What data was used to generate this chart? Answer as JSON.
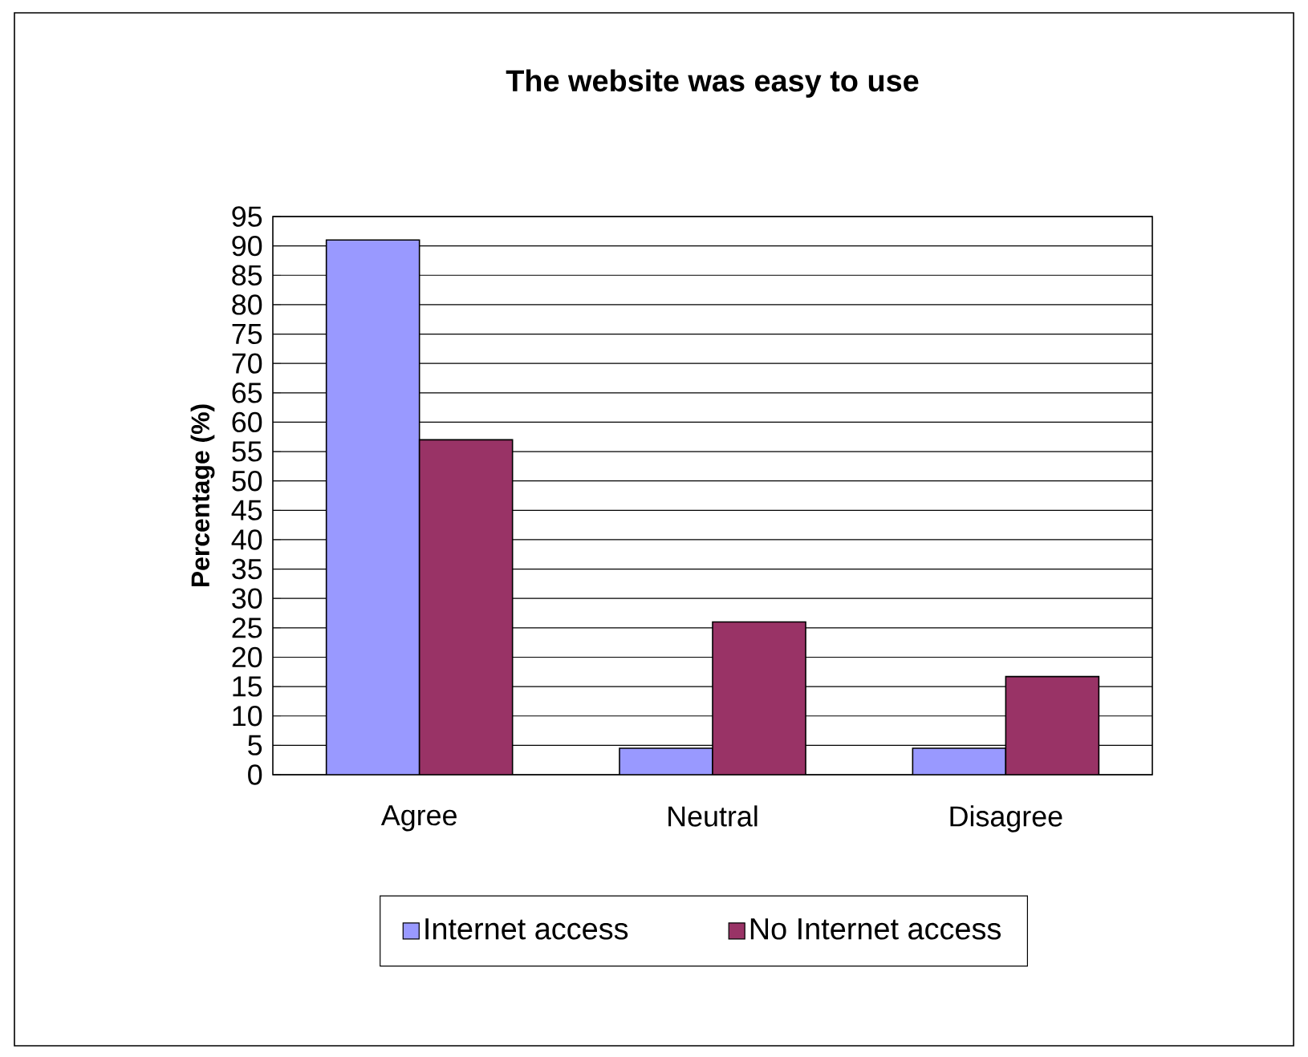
{
  "chart_data": {
    "type": "bar",
    "title": "The website was easy to use",
    "ylabel": "Percentage (%)",
    "categories": [
      "Agree",
      "Neutral",
      "Disagree"
    ],
    "series": [
      {
        "name": "Internet access",
        "color": "#9999ff",
        "values": [
          91,
          4.5,
          4.5
        ]
      },
      {
        "name": "No Internet access",
        "color": "#993366",
        "values": [
          57,
          26,
          16.7
        ]
      }
    ],
    "ylim": [
      0,
      95
    ],
    "yticks": [
      0,
      5,
      10,
      15,
      20,
      25,
      30,
      35,
      40,
      45,
      50,
      55,
      60,
      65,
      70,
      75,
      80,
      85,
      90,
      95
    ],
    "grid": "y",
    "legend": "bottom"
  }
}
